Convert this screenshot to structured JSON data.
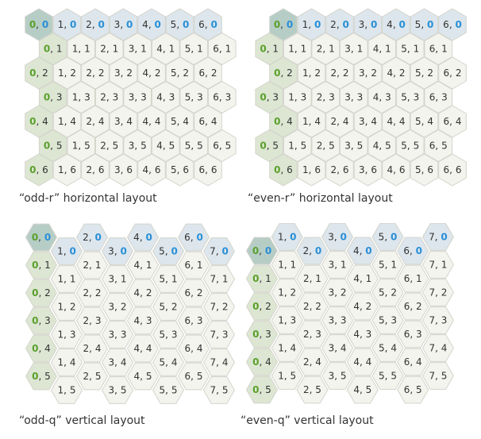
{
  "colors": {
    "background": "#ffffff",
    "cell_fill": "#f4f4ee",
    "cell_stroke": "#d4d4cc",
    "first_row_fill": "#dde6ec",
    "first_col_fill": "#dde6d3",
    "origin_fill": "#b6cdc6",
    "q_highlight": "#5aa02c",
    "r_highlight": "#2a8fd6",
    "text": "#333333"
  },
  "panels": [
    {
      "id": "odd-r",
      "caption": "“odd-r” horizontal layout",
      "orientation": "pointy",
      "offset": "odd",
      "cols": 7,
      "rows": 7
    },
    {
      "id": "even-r",
      "caption": "“even-r” horizontal layout",
      "orientation": "pointy",
      "offset": "even",
      "cols": 7,
      "rows": 7
    },
    {
      "id": "odd-q",
      "caption": "“odd-q” vertical layout",
      "orientation": "flat",
      "offset": "odd",
      "cols": 8,
      "rows": 6
    },
    {
      "id": "even-q",
      "caption": "“even-q” vertical layout",
      "orientation": "flat",
      "offset": "even",
      "cols": 8,
      "rows": 6
    }
  ]
}
